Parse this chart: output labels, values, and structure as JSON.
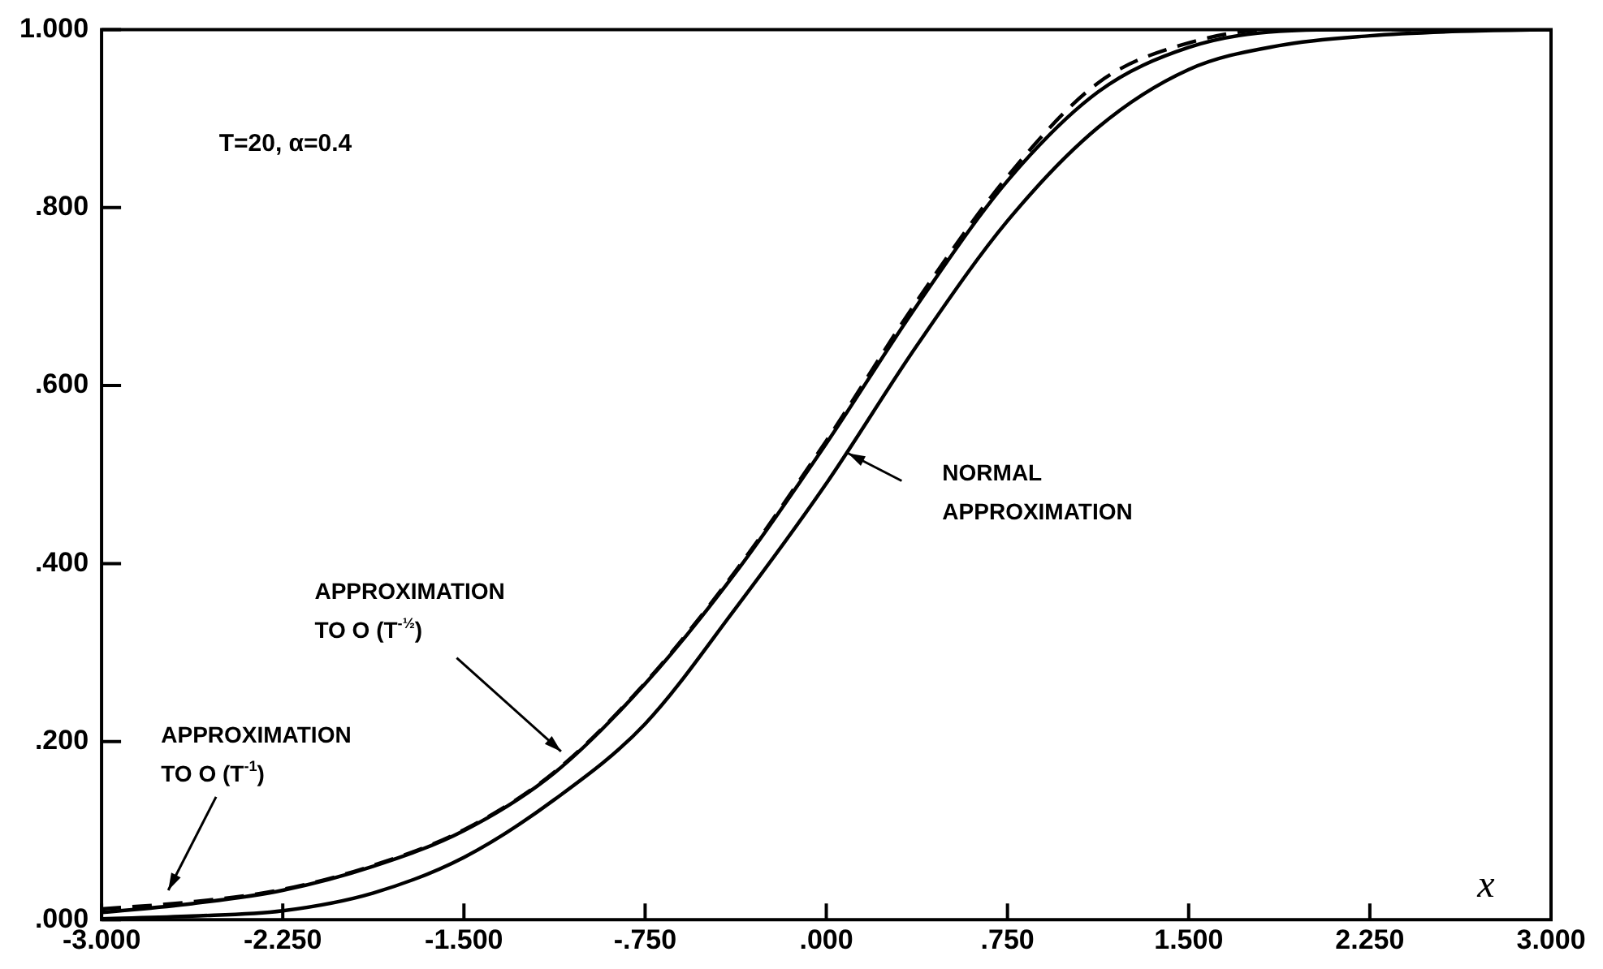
{
  "chart_data": {
    "type": "line",
    "xlabel": "x",
    "x": [
      -3,
      -2.625,
      -2.25,
      -1.875,
      -1.5,
      -1.125,
      -0.75,
      -0.375,
      0,
      0.375,
      0.75,
      1.125,
      1.5,
      1.875,
      2.25,
      2.625,
      3
    ],
    "series": [
      {
        "color": "#000000",
        "line_style": "solid",
        "values": [
          0.001,
          0.004,
          0.01,
          0.03,
          0.07,
          0.135,
          0.22,
          0.35,
          0.49,
          0.645,
          0.785,
          0.89,
          0.955,
          0.982,
          0.993,
          0.998,
          1.0
        ]
      },
      {
        "color": "#000000",
        "line_style": "solid",
        "values": [
          0.008,
          0.018,
          0.033,
          0.06,
          0.1,
          0.165,
          0.265,
          0.39,
          0.535,
          0.69,
          0.83,
          0.93,
          0.98,
          0.998,
          1.0,
          1.0,
          1.0
        ]
      },
      {
        "color": "#000000",
        "line_style": "dashed",
        "values": [
          0.012,
          0.02,
          0.034,
          0.061,
          0.101,
          0.166,
          0.266,
          0.392,
          0.538,
          0.695,
          0.835,
          0.94,
          0.985,
          1.0,
          1.0,
          1.0,
          1.0
        ]
      }
    ],
    "xlim": [
      -3,
      3
    ],
    "xticks": [
      {
        "value": -3,
        "label": "-3.000"
      },
      {
        "value": -2.25,
        "label": "-2.250"
      },
      {
        "value": -1.5,
        "label": "-1.500"
      },
      {
        "value": -0.75,
        "label": "-.750"
      },
      {
        "value": 0,
        "label": ".000"
      },
      {
        "value": 0.75,
        "label": ".750"
      },
      {
        "value": 1.5,
        "label": "1.500"
      },
      {
        "value": 2.25,
        "label": "2.250"
      },
      {
        "value": 3,
        "label": "3.000"
      }
    ],
    "ylim": [
      0,
      1
    ],
    "yticks": [
      {
        "value": 0,
        "label": ".000"
      },
      {
        "value": 0.2,
        "label": ".200"
      },
      {
        "value": 0.4,
        "label": ".400"
      },
      {
        "value": 0.6,
        "label": ".600"
      },
      {
        "value": 0.8,
        "label": ".800"
      },
      {
        "value": 1,
        "label": "1.000"
      }
    ],
    "grid": false,
    "legend": false,
    "marker": "none",
    "annotations": [
      "T=20, α=0.4",
      "NORMAL\nAPPROXIMATION",
      "APPROXIMATION\nTO O (T$^{-½}$)",
      "APPROXIMATION\nTO O (T$^{-1}$)"
    ]
  }
}
